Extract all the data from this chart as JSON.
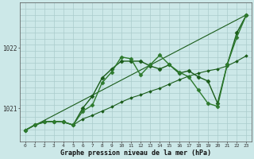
{
  "xlabel": "Graphe pression niveau de la mer (hPa)",
  "bg_color": "#cce8e8",
  "grid_color": "#aacccc",
  "xlim": [
    -0.5,
    23.5
  ],
  "ylim_min": 1020.45,
  "ylim_max": 1022.75,
  "yticks": [
    1021,
    1022
  ],
  "xticks": [
    0,
    1,
    2,
    3,
    4,
    5,
    6,
    7,
    8,
    9,
    10,
    11,
    12,
    13,
    14,
    15,
    16,
    17,
    18,
    19,
    20,
    21,
    22,
    23
  ],
  "series": [
    {
      "x": [
        0,
        23
      ],
      "y": [
        1020.63,
        1022.55
      ],
      "color": "#1a5c1a",
      "marker": "",
      "markersize": 0,
      "linewidth": 0.8
    },
    {
      "x": [
        0,
        1,
        2,
        3,
        4,
        5,
        6,
        7,
        8,
        9,
        10,
        11,
        12,
        13,
        14,
        15,
        16,
        17,
        18,
        19,
        20,
        21,
        22,
        23
      ],
      "y": [
        1020.63,
        1020.72,
        1020.77,
        1020.78,
        1020.77,
        1020.72,
        1020.82,
        1020.88,
        1020.95,
        1021.02,
        1021.1,
        1021.17,
        1021.22,
        1021.28,
        1021.33,
        1021.4,
        1021.47,
        1021.53,
        1021.58,
        1021.62,
        1021.65,
        1021.7,
        1021.78,
        1021.87
      ],
      "color": "#1a5c1a",
      "marker": "D",
      "markersize": 1.8,
      "linewidth": 0.8
    },
    {
      "x": [
        0,
        1,
        2,
        3,
        4,
        5,
        6,
        7,
        8,
        9,
        10,
        11,
        12,
        13,
        14,
        15,
        16,
        17,
        18,
        19,
        20,
        21,
        22,
        23
      ],
      "y": [
        1020.63,
        1020.72,
        1020.77,
        1020.78,
        1020.77,
        1020.72,
        1021.0,
        1021.2,
        1021.5,
        1021.65,
        1021.78,
        1021.78,
        1021.78,
        1021.7,
        1021.65,
        1021.72,
        1021.58,
        1021.62,
        1021.52,
        1021.45,
        1021.08,
        1021.72,
        1022.25,
        1022.55
      ],
      "color": "#1a5c1a",
      "marker": "D",
      "markersize": 2.5,
      "linewidth": 1.0
    },
    {
      "x": [
        0,
        1,
        2,
        3,
        4,
        5,
        6,
        7,
        8,
        9,
        10,
        11,
        12,
        13,
        14,
        15,
        16,
        17,
        18,
        19,
        20,
        21,
        22,
        23
      ],
      "y": [
        1020.63,
        1020.72,
        1020.77,
        1020.78,
        1020.77,
        1020.72,
        1020.95,
        1021.05,
        1021.42,
        1021.6,
        1021.85,
        1021.82,
        1021.55,
        1021.72,
        1021.88,
        1021.72,
        1021.6,
        1021.52,
        1021.3,
        1021.08,
        1021.03,
        1021.72,
        1022.18,
        1022.55
      ],
      "color": "#2d7a2d",
      "marker": "D",
      "markersize": 2.5,
      "linewidth": 1.0
    }
  ]
}
